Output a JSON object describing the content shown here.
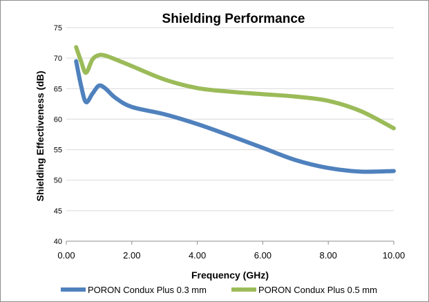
{
  "chart_data": {
    "type": "line",
    "title": "Shielding Performance",
    "xlabel": "Frequency (GHz)",
    "ylabel": "Shielding Effectiveness (dB)",
    "xlim": [
      0,
      10
    ],
    "ylim": [
      40,
      75
    ],
    "x_ticks": [
      "0.00",
      "2.00",
      "4.00",
      "6.00",
      "8.00",
      "10.00"
    ],
    "y_ticks": [
      "40",
      "45",
      "50",
      "55",
      "60",
      "65",
      "70",
      "75"
    ],
    "grid": "horizontal",
    "legend_position": "bottom",
    "series": [
      {
        "name": "PORON Condux Plus 0.3 mm",
        "color": "#4f81bd",
        "points": [
          [
            0.3,
            69.5
          ],
          [
            0.45,
            65.5
          ],
          [
            0.6,
            62.8
          ],
          [
            0.8,
            64.2
          ],
          [
            1.0,
            65.5
          ],
          [
            1.2,
            65.0
          ],
          [
            1.5,
            63.5
          ],
          [
            2.0,
            62.0
          ],
          [
            3.0,
            60.8
          ],
          [
            4.0,
            59.2
          ],
          [
            5.0,
            57.3
          ],
          [
            6.0,
            55.3
          ],
          [
            7.0,
            53.3
          ],
          [
            8.0,
            52.0
          ],
          [
            9.0,
            51.4
          ],
          [
            10.0,
            51.5
          ]
        ]
      },
      {
        "name": "PORON Condux Plus 0.5 mm",
        "color": "#9bbb59",
        "points": [
          [
            0.3,
            71.8
          ],
          [
            0.45,
            69.5
          ],
          [
            0.6,
            67.6
          ],
          [
            0.8,
            69.8
          ],
          [
            1.0,
            70.5
          ],
          [
            1.2,
            70.4
          ],
          [
            1.5,
            69.8
          ],
          [
            2.0,
            68.7
          ],
          [
            3.0,
            66.5
          ],
          [
            4.0,
            65.1
          ],
          [
            5.0,
            64.5
          ],
          [
            6.0,
            64.1
          ],
          [
            7.0,
            63.7
          ],
          [
            8.0,
            63.0
          ],
          [
            9.0,
            61.3
          ],
          [
            10.0,
            58.5
          ]
        ]
      }
    ]
  }
}
